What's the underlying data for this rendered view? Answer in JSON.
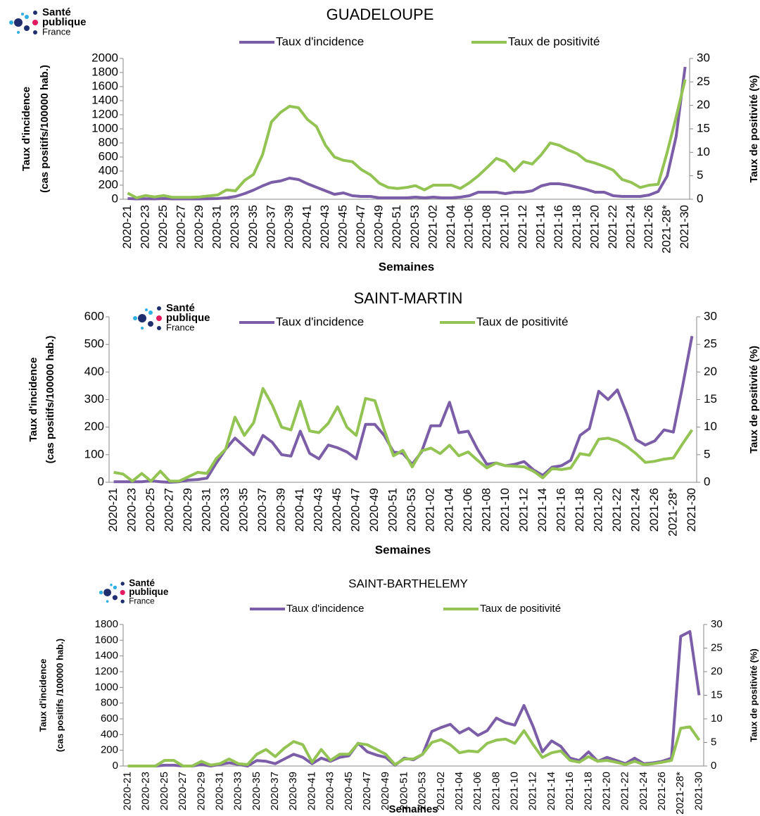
{
  "chart_data": [
    {
      "type": "line",
      "title": "GUADELOUPE",
      "logo_text": [
        "Santé",
        "publique",
        "France"
      ],
      "xlabel": "Semaines",
      "ylabel": [
        "Taux d'incidence",
        "(cas positifs/100000 hab.)"
      ],
      "y2label": "Taux de positivité (%)",
      "categories": [
        "2020-21",
        null,
        "2020-23",
        null,
        "2020-25",
        null,
        "2020-27",
        null,
        "2020-29",
        null,
        "2020-31",
        null,
        "2020-33",
        null,
        "2020-35",
        null,
        "2020-37",
        null,
        "2020-39",
        null,
        "2020-41",
        null,
        "2020-43",
        null,
        "2020-45",
        null,
        "2020-47",
        null,
        "2020-49",
        null,
        "2020-51",
        null,
        "2020-53",
        null,
        "2021-02",
        null,
        "2021-04",
        null,
        "2021-06",
        null,
        "2021-08",
        null,
        "2021-10",
        null,
        "2021-12",
        null,
        "2021-14",
        null,
        "2021-16",
        null,
        "2021-18",
        null,
        "2021-20",
        null,
        "2021-22",
        null,
        "2021-24",
        null,
        "2021-26",
        null,
        "2021-28*",
        null,
        "2021-30"
      ],
      "series": [
        {
          "name": "Taux d'incidence",
          "color": "#7b5ea7",
          "values": [
            10,
            5,
            8,
            5,
            10,
            5,
            5,
            5,
            5,
            8,
            10,
            20,
            40,
            80,
            130,
            190,
            240,
            260,
            300,
            280,
            220,
            170,
            120,
            70,
            90,
            50,
            40,
            40,
            20,
            20,
            20,
            20,
            30,
            20,
            30,
            20,
            20,
            30,
            50,
            100,
            100,
            100,
            80,
            100,
            100,
            120,
            190,
            220,
            220,
            200,
            170,
            140,
            100,
            100,
            50,
            40,
            40,
            40,
            60,
            110,
            330,
            890,
            1880
          ]
        },
        {
          "name": "Taux de positivité",
          "color": "#92c353",
          "axis": "y2",
          "values": [
            1.3,
            0.3,
            0.8,
            0.5,
            0.8,
            0.4,
            0.4,
            0.4,
            0.5,
            0.7,
            0.9,
            2.0,
            1.8,
            4.0,
            5.3,
            9.5,
            16.5,
            18.5,
            19.8,
            19.5,
            17.0,
            15.5,
            11.5,
            9.0,
            8.3,
            8.0,
            6.3,
            5.2,
            3.4,
            2.5,
            2.3,
            2.5,
            2.9,
            2.0,
            3.0,
            3.0,
            3.0,
            2.3,
            3.5,
            5.0,
            6.8,
            8.7,
            8.0,
            6.0,
            8.0,
            7.5,
            9.5,
            12.0,
            11.5,
            10.5,
            9.7,
            8.2,
            7.7,
            7.0,
            6.2,
            4.2,
            3.6,
            2.5,
            3.0,
            3.2,
            10.0,
            17.5,
            25.5
          ]
        }
      ],
      "ylim": [
        0,
        2000
      ],
      "yticks": [
        0,
        200,
        400,
        600,
        800,
        1000,
        1200,
        1400,
        1600,
        1800,
        2000
      ],
      "y2lim": [
        0,
        30
      ],
      "y2ticks": [
        0,
        5,
        10,
        15,
        20,
        25,
        30
      ]
    },
    {
      "type": "line",
      "title": "SAINT-MARTIN",
      "logo_text": [
        "Santé",
        "publique",
        "France"
      ],
      "xlabel": "Semaines",
      "ylabel": [
        "Taux d'incidence",
        "(cas positifs/100000 hab.)"
      ],
      "y2label": "Taux de positivité (%)",
      "categories": [
        "2020-21",
        null,
        "2020-23",
        null,
        "2020-25",
        null,
        "2020-27",
        null,
        "2020-29",
        null,
        "2020-31",
        null,
        "2020-33",
        null,
        "2020-35",
        null,
        "2020-37",
        null,
        "2020-39",
        null,
        "2020-41",
        null,
        "2020-43",
        null,
        "2020-45",
        null,
        "2020-47",
        null,
        "2020-49",
        null,
        "2020-51",
        null,
        "2020-53",
        null,
        "2021-02",
        null,
        "2021-04",
        null,
        "2021-06",
        null,
        "2021-08",
        null,
        "2021-10",
        null,
        "2021-12",
        null,
        "2021-14",
        null,
        "2021-16",
        null,
        "2021-18",
        null,
        "2021-20",
        null,
        "2021-22",
        null,
        "2021-24",
        null,
        "2021-26",
        null,
        "2021-28*",
        null,
        "2021-30"
      ],
      "series": [
        {
          "name": "Taux d'incidence",
          "color": "#7b5ea7",
          "values": [
            2,
            2,
            2,
            2,
            5,
            2,
            0,
            2,
            8,
            10,
            15,
            70,
            120,
            160,
            130,
            100,
            170,
            145,
            100,
            95,
            185,
            105,
            85,
            135,
            125,
            110,
            85,
            210,
            210,
            170,
            110,
            105,
            65,
            110,
            205,
            205,
            290,
            180,
            185,
            120,
            65,
            70,
            60,
            65,
            75,
            45,
            25,
            55,
            60,
            80,
            170,
            195,
            330,
            300,
            335,
            250,
            155,
            135,
            150,
            190,
            182,
            350,
            530
          ]
        },
        {
          "name": "Taux de positivité",
          "color": "#92c353",
          "axis": "y2",
          "values": [
            1.8,
            1.5,
            0.2,
            1.6,
            0.2,
            2.0,
            0.2,
            0.2,
            1.0,
            1.8,
            1.6,
            4.3,
            6.0,
            11.8,
            8.5,
            10.8,
            17.0,
            14.0,
            10.0,
            9.5,
            14.7,
            9.3,
            9.0,
            10.7,
            13.7,
            10.0,
            8.5,
            15.2,
            14.8,
            9.5,
            4.8,
            5.8,
            2.8,
            5.7,
            6.2,
            5.2,
            6.7,
            4.8,
            5.5,
            4.0,
            2.6,
            3.5,
            3.0,
            2.9,
            2.8,
            2.0,
            0.8,
            2.5,
            2.3,
            2.6,
            5.2,
            4.9,
            7.8,
            8.0,
            7.5,
            6.5,
            5.2,
            3.6,
            3.8,
            4.2,
            4.4,
            7.0,
            9.5
          ]
        }
      ],
      "ylim": [
        0,
        600
      ],
      "yticks": [
        0,
        100,
        200,
        300,
        400,
        500,
        600
      ],
      "y2lim": [
        0,
        30
      ],
      "y2ticks": [
        0,
        5,
        10,
        15,
        20,
        25,
        30
      ]
    },
    {
      "type": "line",
      "title": "SAINT-BARTHELEMY",
      "logo_text": [
        "Santé",
        "publique",
        "France"
      ],
      "xlabel": "Semaines",
      "ylabel": [
        "Taux d'incidence",
        "(cas positifs /100000 hab.)"
      ],
      "y2label": "Taux de positivité (%)",
      "categories": [
        "2020-21",
        null,
        "2020-23",
        null,
        "2020-25",
        null,
        "2020-27",
        null,
        "2020-29",
        null,
        "2020-31",
        null,
        "2020-33",
        null,
        "2020-35",
        null,
        "2020-37",
        null,
        "2020-39",
        null,
        "2020-41",
        null,
        "2020-43",
        null,
        "2020-45",
        null,
        "2020-47",
        null,
        "2020-49",
        null,
        "2020-51",
        null,
        "2020-53",
        null,
        "2021-02",
        null,
        "2021-04",
        null,
        "2021-06",
        null,
        "2021-08",
        null,
        "2021-10",
        null,
        "2021-12",
        null,
        "2021-14",
        null,
        "2021-16",
        null,
        "2021-18",
        null,
        "2021-20",
        null,
        "2021-22",
        null,
        "2021-24",
        null,
        "2021-26",
        null,
        "2021-28*",
        null,
        "2021-30"
      ],
      "series": [
        {
          "name": "Taux d'incidence",
          "color": "#7b5ea7",
          "values": [
            0,
            0,
            0,
            0,
            10,
            10,
            0,
            0,
            20,
            0,
            20,
            40,
            20,
            0,
            70,
            60,
            30,
            90,
            150,
            110,
            30,
            100,
            60,
            110,
            130,
            290,
            180,
            140,
            110,
            10,
            100,
            80,
            150,
            440,
            490,
            530,
            420,
            480,
            390,
            450,
            610,
            550,
            520,
            770,
            500,
            180,
            320,
            250,
            100,
            70,
            180,
            60,
            110,
            70,
            30,
            100,
            30,
            40,
            60,
            100,
            1650,
            1710,
            900
          ]
        },
        {
          "name": "Taux de positivité",
          "color": "#92c353",
          "axis": "y2",
          "values": [
            0,
            0,
            0,
            0,
            1.2,
            1.2,
            0,
            0,
            1.0,
            0.2,
            0.5,
            1.5,
            0.5,
            0.3,
            2.5,
            3.5,
            2.0,
            3.8,
            5.2,
            4.5,
            0.8,
            3.5,
            1.2,
            2.5,
            2.5,
            4.8,
            4.5,
            3.5,
            2.5,
            0.3,
            1.5,
            1.5,
            2.5,
            5.0,
            5.6,
            4.5,
            2.8,
            3.2,
            3.0,
            4.8,
            5.5,
            5.7,
            4.8,
            7.5,
            4.5,
            1.8,
            2.8,
            3.2,
            1.2,
            0.8,
            2.0,
            1.0,
            1.2,
            0.8,
            0.3,
            1.0,
            0.3,
            0.5,
            0.8,
            1.2,
            8.0,
            8.3,
            5.5
          ]
        }
      ],
      "ylim": [
        0,
        1800
      ],
      "yticks": [
        0,
        200,
        400,
        600,
        800,
        1000,
        1200,
        1400,
        1600,
        1800
      ],
      "y2lim": [
        0,
        30
      ],
      "y2ticks": [
        0,
        5,
        10,
        15,
        20,
        25,
        30
      ]
    }
  ]
}
